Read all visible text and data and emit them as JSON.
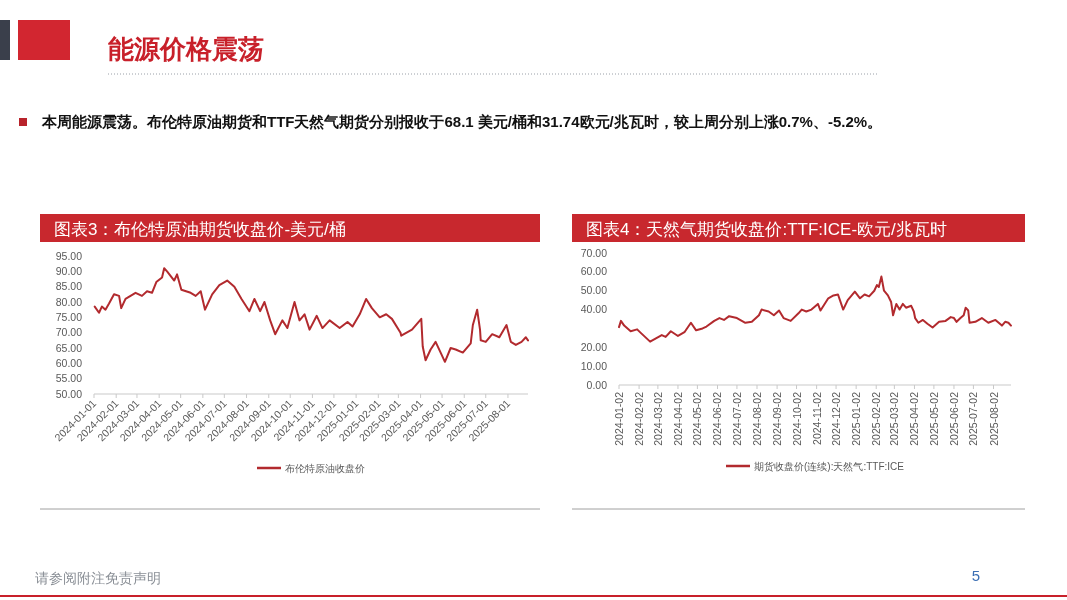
{
  "chart_data": [
    {
      "type": "other",
      "title": "能源价格震荡",
      "annotations": [
        "本周能源震荡。布伦特原油期货和TTF天然气期货分别报收于68.1 美元/桶和31.74欧元/兆瓦时，较上周分别上涨0.7%、-5.2%。",
        "请参阅附注免责声明",
        "5"
      ]
    },
    {
      "type": "line",
      "title": "图表3：布伦特原油期货收盘价-美元/桶",
      "legend": "bottom",
      "x": [
        "2024-01-02",
        "2024-01-08",
        "2024-01-12",
        "2024-01-17",
        "2024-01-22",
        "2024-01-29",
        "2024-02-05",
        "2024-02-08",
        "2024-02-14",
        "2024-02-28",
        "2024-03-08",
        "2024-03-15",
        "2024-03-22",
        "2024-03-28",
        "2024-04-05",
        "2024-04-08",
        "2024-04-12",
        "2024-04-22",
        "2024-04-26",
        "2024-05-02",
        "2024-05-15",
        "2024-05-22",
        "2024-05-29",
        "2024-06-04",
        "2024-06-14",
        "2024-06-24",
        "2024-07-05",
        "2024-07-15",
        "2024-07-25",
        "2024-08-05",
        "2024-08-12",
        "2024-08-20",
        "2024-08-26",
        "2024-09-03",
        "2024-09-10",
        "2024-09-20",
        "2024-09-27",
        "2024-10-07",
        "2024-10-14",
        "2024-10-21",
        "2024-10-28",
        "2024-11-07",
        "2024-11-15",
        "2024-11-25",
        "2024-12-09",
        "2024-12-20",
        "2024-12-27",
        "2025-01-06",
        "2025-01-15",
        "2025-01-23",
        "2025-02-03",
        "2025-02-12",
        "2025-02-20",
        "2025-03-04",
        "2025-03-05",
        "2025-03-20",
        "2025-04-02",
        "2025-04-04",
        "2025-04-08",
        "2025-04-15",
        "2025-04-22",
        "2025-04-30",
        "2025-05-05",
        "2025-05-13",
        "2025-05-20",
        "2025-05-30",
        "2025-06-10",
        "2025-06-13",
        "2025-06-19",
        "2025-06-23",
        "2025-06-24",
        "2025-07-01",
        "2025-07-10",
        "2025-07-20",
        "2025-07-30",
        "2025-08-05",
        "2025-08-12",
        "2025-08-20",
        "2025-08-26",
        "2025-08-29"
      ],
      "series": [
        {
          "name": "布伦特原油收盘价",
          "color": "#b22a2e",
          "values": [
            78.5,
            76.5,
            78.5,
            77.5,
            79.5,
            82.5,
            82,
            78,
            81,
            83,
            82,
            83.5,
            83,
            86.5,
            88,
            91,
            90,
            87,
            89,
            84,
            83,
            82,
            83.5,
            77.5,
            82.5,
            85.5,
            87,
            85,
            81,
            77,
            81,
            77,
            80,
            74,
            69.5,
            74,
            71.5,
            80,
            74,
            76,
            71,
            75.5,
            71.5,
            74,
            71.5,
            73.5,
            72,
            76,
            81,
            78,
            75,
            76,
            74.5,
            70,
            69,
            71,
            74.5,
            65.5,
            61,
            64.5,
            67,
            63,
            60.5,
            65,
            64.5,
            63.5,
            66.5,
            72.5,
            77.5,
            71,
            67.5,
            67,
            69.5,
            68.5,
            72.5,
            67,
            66,
            67,
            68.5,
            67.5
          ]
        }
      ],
      "xlim": [
        "2024-01-01",
        "2025-08-29"
      ],
      "xticks": [
        "2024-01-01",
        "2024-02-01",
        "2024-03-01",
        "2024-04-01",
        "2024-05-01",
        "2024-06-01",
        "2024-07-01",
        "2024-08-01",
        "2024-09-01",
        "2024-10-01",
        "2024-11-01",
        "2024-12-01",
        "2025-01-01",
        "2025-02-01",
        "2025-03-01",
        "2025-04-01",
        "2025-05-01",
        "2025-06-01",
        "2025-07-01",
        "2025-08-01"
      ],
      "ylim": [
        50,
        95
      ],
      "yticks": [
        {
          "value": 50,
          "label": "50.00"
        },
        {
          "value": 55,
          "label": "55.00"
        },
        {
          "value": 60,
          "label": "60.00"
        },
        {
          "value": 65,
          "label": "65.00"
        },
        {
          "value": 70,
          "label": "70.00"
        },
        {
          "value": 75,
          "label": "75.00"
        },
        {
          "value": 80,
          "label": "80.00"
        },
        {
          "value": 85,
          "label": "85.00"
        },
        {
          "value": 90,
          "label": "90.00"
        },
        {
          "value": 95,
          "label": "95.00"
        }
      ]
    },
    {
      "type": "line",
      "title": "图表4：天然气期货收盘价:TTF:ICE-欧元/兆瓦时",
      "legend": "bottom",
      "x": [
        "2024-01-02",
        "2024-01-05",
        "2024-01-10",
        "2024-01-20",
        "2024-01-30",
        "2024-02-05",
        "2024-02-19",
        "2024-03-08",
        "2024-03-14",
        "2024-03-22",
        "2024-04-02",
        "2024-04-12",
        "2024-04-22",
        "2024-04-30",
        "2024-05-10",
        "2024-05-16",
        "2024-05-28",
        "2024-06-05",
        "2024-06-12",
        "2024-06-20",
        "2024-07-02",
        "2024-07-15",
        "2024-07-25",
        "2024-08-05",
        "2024-08-09",
        "2024-08-20",
        "2024-08-28",
        "2024-09-05",
        "2024-09-12",
        "2024-09-23",
        "2024-10-05",
        "2024-10-10",
        "2024-10-17",
        "2024-10-25",
        "2024-11-04",
        "2024-11-08",
        "2024-11-20",
        "2024-11-28",
        "2024-12-05",
        "2024-12-13",
        "2024-12-20",
        "2024-12-31",
        "2025-01-08",
        "2025-01-15",
        "2025-01-22",
        "2025-01-30",
        "2025-02-03",
        "2025-02-06",
        "2025-02-10",
        "2025-02-14",
        "2025-02-20",
        "2025-02-25",
        "2025-02-28",
        "2025-03-05",
        "2025-03-10",
        "2025-03-15",
        "2025-03-20",
        "2025-03-28",
        "2025-04-01",
        "2025-04-03",
        "2025-04-08",
        "2025-04-15",
        "2025-04-22",
        "2025-04-30",
        "2025-05-10",
        "2025-05-20",
        "2025-05-28",
        "2025-06-02",
        "2025-06-06",
        "2025-06-12",
        "2025-06-17",
        "2025-06-20",
        "2025-06-24",
        "2025-06-26",
        "2025-07-05",
        "2025-07-15",
        "2025-07-25",
        "2025-08-05",
        "2025-08-10",
        "2025-08-15",
        "2025-08-20",
        "2025-08-25",
        "2025-08-29"
      ],
      "series": [
        {
          "name": "期货收盘价(连续):天然气:TTF:ICE",
          "color": "#b22a2e",
          "values": [
            30.7,
            34,
            31.5,
            28.5,
            29.5,
            27.5,
            23,
            26.5,
            25.5,
            28.5,
            26,
            28,
            33,
            29,
            30,
            31,
            34,
            35.5,
            34.5,
            36.5,
            35.5,
            33,
            33.5,
            37,
            40,
            39,
            37,
            39.5,
            35.5,
            34,
            38,
            40,
            39,
            40,
            43,
            39.5,
            46,
            47.5,
            48,
            40,
            45,
            49.5,
            46,
            48,
            47,
            50,
            53,
            52,
            57.5,
            50,
            47.5,
            44,
            37,
            43,
            40,
            43,
            41,
            42,
            39,
            35.5,
            33,
            34.5,
            32.5,
            30.5,
            33.5,
            34,
            36,
            35.5,
            33.5,
            35.5,
            37,
            41,
            39.5,
            33,
            33.5,
            35.5,
            33,
            34.5,
            33,
            31.5,
            33.5,
            33,
            31.5
          ]
        }
      ],
      "xlim": [
        "2024-01-02",
        "2025-08-29"
      ],
      "xticks": [
        "2024-01-02",
        "2024-02-02",
        "2024-03-02",
        "2024-04-02",
        "2024-05-02",
        "2024-06-02",
        "2024-07-02",
        "2024-08-02",
        "2024-09-02",
        "2024-10-02",
        "2024-11-02",
        "2024-12-02",
        "2025-01-02",
        "2025-02-02",
        "2025-03-02",
        "2025-04-02",
        "2025-05-02",
        "2025-06-02",
        "2025-07-02",
        "2025-08-02"
      ],
      "ylim": [
        0,
        70
      ],
      "yticks": [
        {
          "value": 0,
          "label": "0.00"
        },
        {
          "value": 10,
          "label": "10.00"
        },
        {
          "value": 20,
          "label": "20.00"
        },
        {
          "value": 40,
          "label": "40.00"
        },
        {
          "value": 50,
          "label": "50.00"
        },
        {
          "value": 60,
          "label": "60.00"
        },
        {
          "value": 70,
          "label": "70.00"
        }
      ]
    }
  ]
}
